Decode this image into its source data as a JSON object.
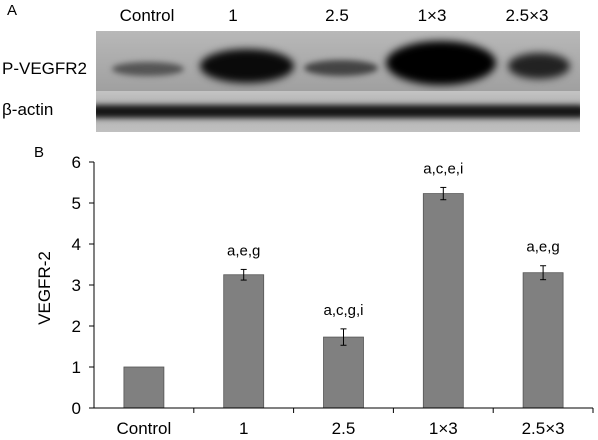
{
  "panel_a": {
    "letter": "A",
    "lanes": [
      "Control",
      "1",
      "2.5",
      "1×3",
      "2.5×3"
    ],
    "rows": [
      "P-VEGFR2",
      "β-actin"
    ]
  },
  "panel_b": {
    "letter": "B"
  },
  "chart_data": {
    "type": "bar",
    "categories": [
      "Control",
      "1",
      "2.5",
      "1×3",
      "2.5×3"
    ],
    "values": [
      1.0,
      3.25,
      1.73,
      5.23,
      3.3
    ],
    "errors": [
      0.0,
      0.13,
      0.2,
      0.15,
      0.17
    ],
    "annotations": [
      "",
      "a,e,g",
      "a,c,g,i",
      "a,c,e,i",
      "a,e,g"
    ],
    "ylabel": "VEGFR-2",
    "ylim": [
      0,
      6
    ],
    "yticks": [
      0,
      1,
      2,
      3,
      4,
      5,
      6
    ],
    "bar_color": "#808080",
    "grid": false,
    "legend": "none"
  }
}
